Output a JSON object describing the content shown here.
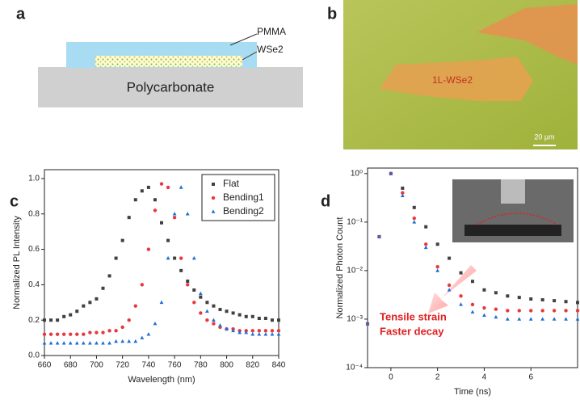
{
  "panel_labels": [
    "a",
    "b",
    "c",
    "d"
  ],
  "diagram": {
    "layer_top": "PMMA",
    "layer_mid": "WSe2",
    "substrate": "Polycarbonate"
  },
  "micrograph": {
    "flake_label": "1L-WSe2",
    "scale_bar": "20 µm"
  },
  "chart_data": [
    {
      "type": "scatter",
      "x": [
        660,
        665,
        670,
        675,
        680,
        685,
        690,
        695,
        700,
        705,
        710,
        715,
        720,
        725,
        730,
        735,
        740,
        745,
        750,
        755,
        760,
        765,
        770,
        775,
        780,
        785,
        790,
        795,
        800,
        805,
        810,
        815,
        820,
        825,
        830,
        835,
        840
      ],
      "series": [
        {
          "name": "Flat",
          "color": "#404040",
          "marker": "square",
          "values": [
            0.2,
            0.2,
            0.2,
            0.22,
            0.23,
            0.25,
            0.28,
            0.3,
            0.32,
            0.38,
            0.45,
            0.55,
            0.65,
            0.78,
            0.88,
            0.93,
            0.95,
            0.88,
            0.75,
            0.65,
            0.55,
            0.48,
            0.42,
            0.37,
            0.33,
            0.3,
            0.28,
            0.26,
            0.25,
            0.24,
            0.23,
            0.22,
            0.22,
            0.21,
            0.21,
            0.2,
            0.2
          ]
        },
        {
          "name": "Bending1",
          "color": "#e8383d",
          "marker": "circle",
          "values": [
            0.12,
            0.12,
            0.12,
            0.12,
            0.12,
            0.12,
            0.12,
            0.13,
            0.13,
            0.13,
            0.14,
            0.14,
            0.16,
            0.2,
            0.28,
            0.4,
            0.6,
            0.82,
            0.97,
            0.95,
            0.78,
            0.55,
            0.4,
            0.3,
            0.24,
            0.2,
            0.18,
            0.16,
            0.15,
            0.15,
            0.14,
            0.14,
            0.14,
            0.14,
            0.14,
            0.14,
            0.14
          ]
        },
        {
          "name": "Bending2",
          "color": "#1f6fd6",
          "marker": "triangle",
          "values": [
            0.07,
            0.07,
            0.07,
            0.07,
            0.07,
            0.07,
            0.07,
            0.07,
            0.07,
            0.07,
            0.07,
            0.08,
            0.08,
            0.08,
            0.08,
            0.1,
            0.12,
            0.18,
            0.3,
            0.55,
            0.8,
            0.95,
            0.8,
            0.55,
            0.35,
            0.25,
            0.2,
            0.17,
            0.15,
            0.14,
            0.13,
            0.13,
            0.12,
            0.12,
            0.12,
            0.12,
            0.12
          ]
        }
      ],
      "xlim": [
        660,
        840
      ],
      "xticks": [
        660,
        680,
        700,
        720,
        740,
        760,
        780,
        800,
        820,
        840
      ],
      "ylim": [
        0,
        1.05
      ],
      "yticks": [
        {
          "value": 0,
          "label": "0.0"
        },
        {
          "value": 0.2,
          "label": "0.2"
        },
        {
          "value": 0.4,
          "label": "0.4"
        },
        {
          "value": 0.6,
          "label": "0.6"
        },
        {
          "value": 0.8,
          "label": "0.8"
        },
        {
          "value": 1,
          "label": "1.0"
        }
      ],
      "x_label": "Wavelength (nm)",
      "y_label": "Normalized PL Intensity",
      "legend": "upper right"
    },
    {
      "type": "scatter",
      "x": [
        -1,
        -0.5,
        0,
        0.5,
        1,
        1.5,
        2,
        2.5,
        3,
        3.5,
        4,
        4.5,
        5,
        5.5,
        6,
        6.5,
        7,
        7.5,
        8
      ],
      "series": [
        {
          "color": "#404040",
          "marker": "square",
          "values": [
            0.0008,
            0.05,
            1,
            0.5,
            0.2,
            0.08,
            0.035,
            0.018,
            0.009,
            0.006,
            0.004,
            0.0035,
            0.003,
            0.0028,
            0.0026,
            0.0025,
            0.0024,
            0.0023,
            0.0022
          ]
        },
        {
          "color": "#e8383d",
          "marker": "circle",
          "values": [
            0.0008,
            0.05,
            1,
            0.4,
            0.12,
            0.035,
            0.012,
            0.005,
            0.003,
            0.002,
            0.0017,
            0.0016,
            0.0015,
            0.0015,
            0.0015,
            0.0015,
            0.0015,
            0.0015,
            0.0015
          ]
        },
        {
          "color": "#1f6fd6",
          "marker": "triangle",
          "values": [
            0.0008,
            0.05,
            1,
            0.35,
            0.1,
            0.03,
            0.01,
            0.004,
            0.002,
            0.0014,
            0.0012,
            0.0011,
            0.001,
            0.001,
            0.001,
            0.001,
            0.001,
            0.001,
            0.001
          ]
        }
      ],
      "xlim": [
        -1,
        8
      ],
      "xticks": [
        0,
        2,
        4,
        6
      ],
      "ylim": [
        0.0001,
        1.3
      ],
      "log_y": true,
      "yticks": [
        {
          "value": 0.0001,
          "label": "10⁻⁴"
        },
        {
          "value": 0.001,
          "label": "10⁻³"
        },
        {
          "value": 0.01,
          "label": "10⁻²"
        },
        {
          "value": 0.1,
          "label": "10⁻¹"
        },
        {
          "value": 1,
          "label": "10⁰"
        }
      ],
      "x_label": "Time (ns)",
      "y_label": "Normalized Photon Count",
      "annotations": [
        "Tensile strain",
        "Faster decay"
      ]
    }
  ]
}
